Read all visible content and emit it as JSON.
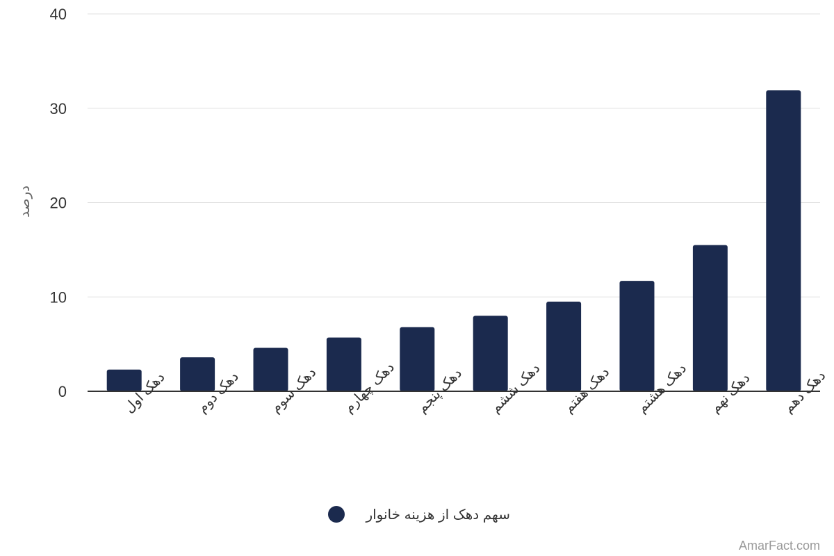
{
  "chart_data": {
    "type": "bar",
    "categories": [
      "دهک اول",
      "دهک دوم",
      "دهک سوم",
      "دهک چهارم",
      "دهک پنجم",
      "دهک ششم",
      "دهک هفتم",
      "دهک هشتم",
      "دهک نهم",
      "دهک دهم"
    ],
    "series": [
      {
        "name": "سهم دهک از هزینه خانوار",
        "color": "#1b2a4e",
        "values": [
          2.3,
          3.6,
          4.6,
          5.7,
          6.8,
          8.0,
          9.5,
          11.7,
          15.5,
          31.9
        ]
      }
    ],
    "ylabel": "درصد",
    "xlabel": "",
    "ylim": [
      0,
      40
    ],
    "yticks": [
      0,
      10,
      20,
      30,
      40
    ],
    "grid": true,
    "legend_position": "bottom-center"
  },
  "watermark": "AmarFact.com"
}
